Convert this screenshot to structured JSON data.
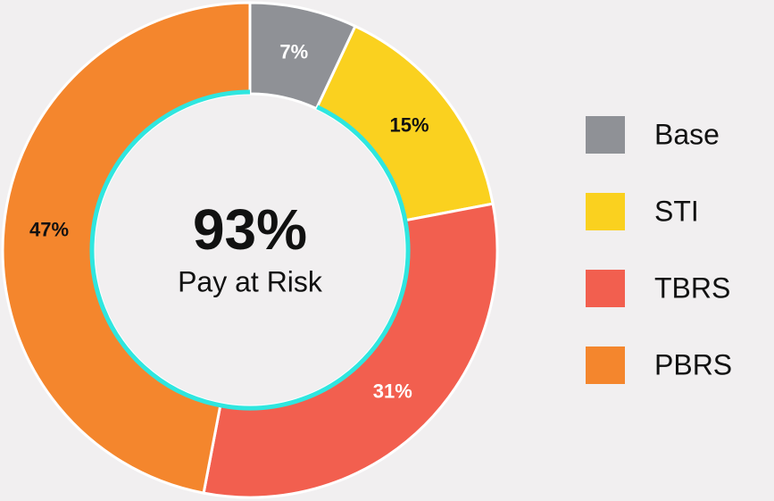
{
  "chart_data": {
    "type": "donut",
    "categories": [
      "Base",
      "STI",
      "TBRS",
      "PBRS"
    ],
    "values": [
      7,
      15,
      31,
      47
    ],
    "value_labels": [
      "7%",
      "15%",
      "31%",
      "47%"
    ],
    "colors": [
      "#8f9196",
      "#fad11f",
      "#f25f4f",
      "#f4862d"
    ],
    "label_colors": [
      "#ffffff",
      "#111111",
      "#ffffff",
      "#111111"
    ],
    "center": {
      "value": 93,
      "label": "93%",
      "caption": "Pay at Risk",
      "color": "#2fe6df"
    },
    "legend": "right"
  }
}
